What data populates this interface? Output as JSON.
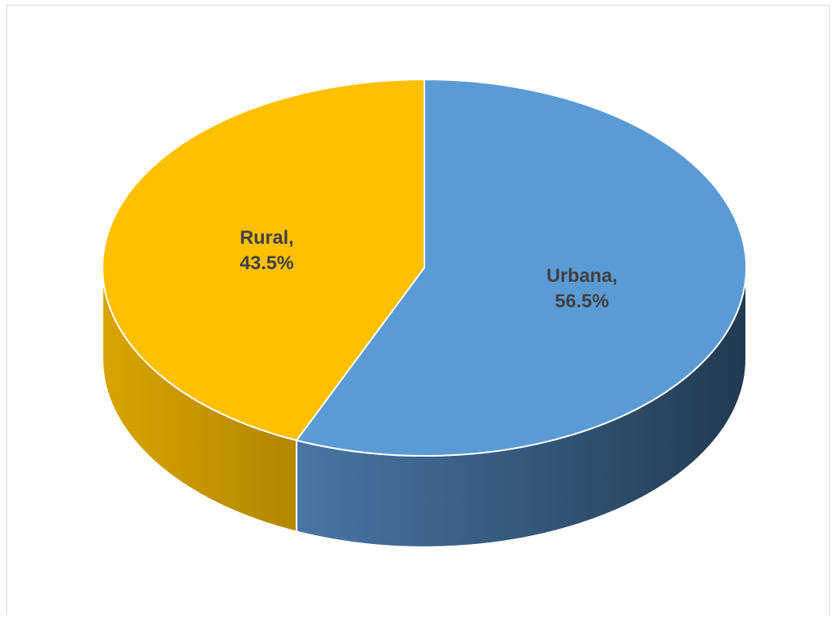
{
  "chart_data": {
    "type": "pie",
    "style": "3d",
    "slices": [
      {
        "label": "Urbana",
        "value": 56.5,
        "value_label": "56.5%",
        "color": "#5b9bd5",
        "side_color_light": "#4a79a8",
        "side_color_dark": "#223a52"
      },
      {
        "label": "Rural",
        "value": 43.5,
        "value_label": "43.5%",
        "color": "#ffc000",
        "side_color_light": "#d9a400",
        "side_color_dark": "#b58800"
      }
    ],
    "slice_border_color": "#ffffff",
    "label_color": "#404040"
  }
}
